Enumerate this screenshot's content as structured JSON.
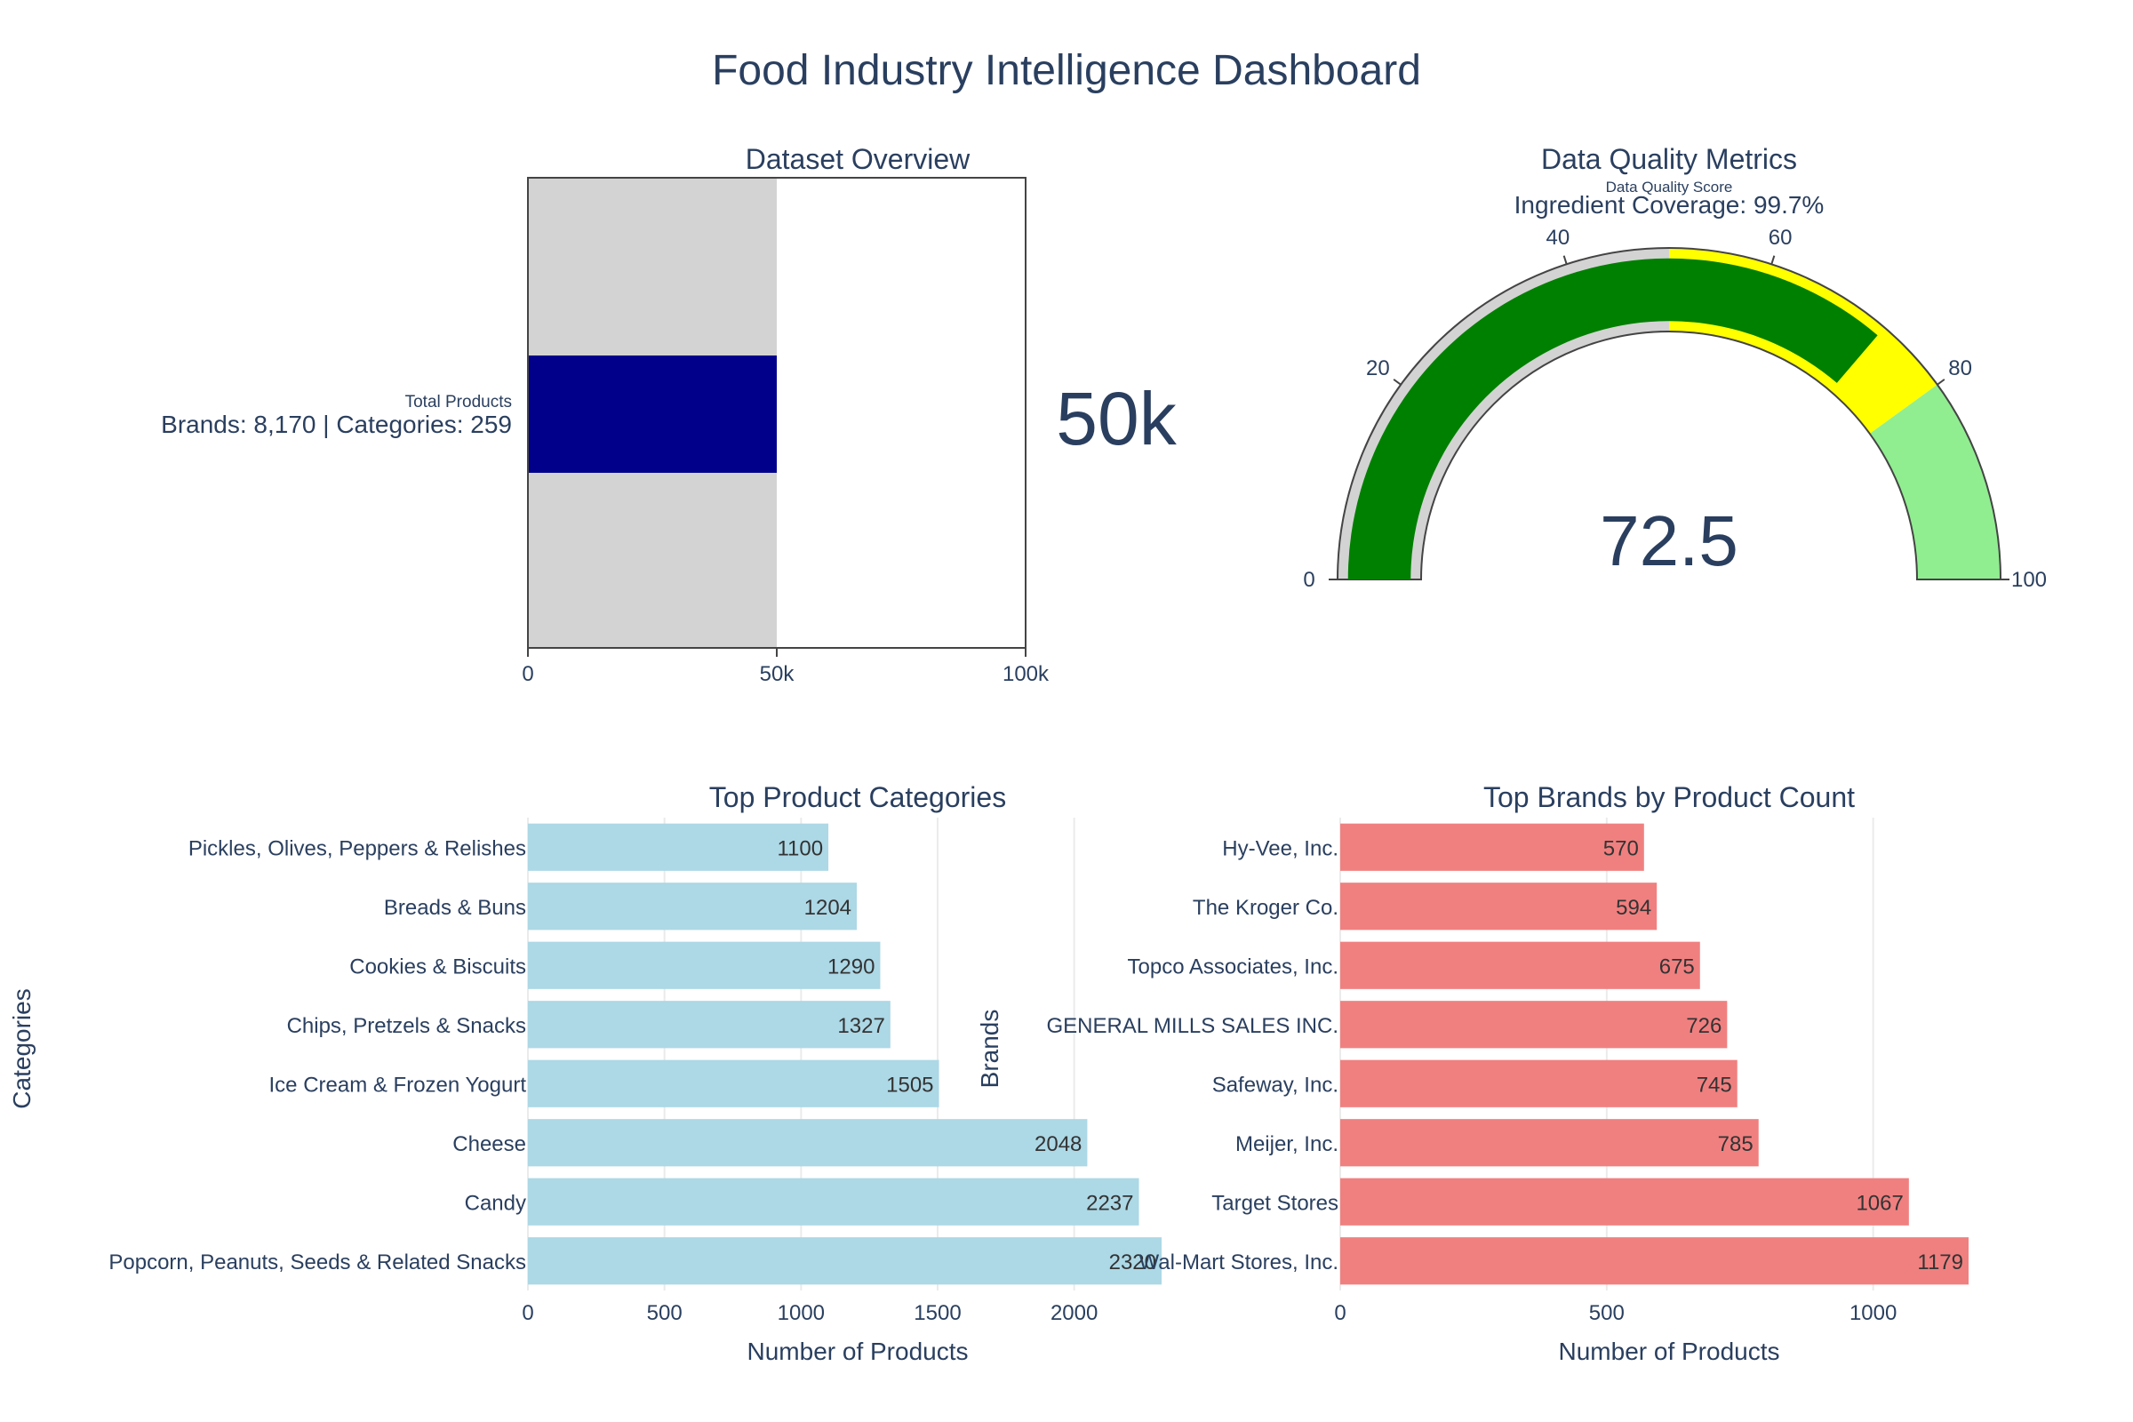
{
  "dashboard_title": "Food Industry Intelligence Dashboard",
  "colors": {
    "text": "#2a3f5f",
    "bullet_bar": "#00008b",
    "bullet_range": "#d3d3d3",
    "gauge_bar": "#008000",
    "gauge_step_low": "#d3d3d3",
    "gauge_step_mid": "#ffff00",
    "gauge_step_high": "#90ee90",
    "categories_bar": "#add8e6",
    "brands_bar": "#f08080",
    "grid": "#ebebeb"
  },
  "chart_data": [
    {
      "type": "bullet",
      "panel_title": "Dataset Overview",
      "label": "Total Products",
      "sublabel": "Brands: 8,170 | Categories: 259",
      "value": 50000,
      "value_text": "50k",
      "range": [
        0,
        100000
      ],
      "step_range": [
        0,
        50000
      ],
      "ticks": [
        0,
        50000,
        100000
      ],
      "tick_labels": [
        "0",
        "50k",
        "100k"
      ]
    },
    {
      "type": "gauge",
      "panel_title": "Data Quality Metrics",
      "label": "Data Quality Score",
      "sublabel": "Ingredient Coverage: 99.7%",
      "value": 72.5,
      "value_text": "72.5",
      "range": [
        0,
        100
      ],
      "steps": [
        [
          0,
          50
        ],
        [
          50,
          80
        ],
        [
          80,
          100
        ]
      ],
      "ticks": [
        0,
        20,
        40,
        60,
        80,
        100
      ]
    },
    {
      "type": "bar",
      "orientation": "horizontal",
      "title": "Top Product Categories",
      "xlabel": "Number of Products",
      "ylabel": "Categories",
      "categories": [
        "Popcorn, Peanuts, Seeds & Related Snacks",
        "Candy",
        "Cheese",
        "Ice Cream & Frozen Yogurt",
        "Chips, Pretzels & Snacks",
        "Cookies & Biscuits",
        "Breads & Buns",
        "Pickles, Olives, Peppers & Relishes"
      ],
      "values": [
        2320,
        2237,
        2048,
        1505,
        1327,
        1290,
        1204,
        1100
      ],
      "xlim": [
        0,
        2320
      ],
      "xticks": [
        0,
        500,
        1000,
        1500,
        2000
      ]
    },
    {
      "type": "bar",
      "orientation": "horizontal",
      "title": "Top Brands by Product Count",
      "xlabel": "Number of Products",
      "ylabel": "Brands",
      "categories": [
        "Wal-Mart Stores, Inc.",
        "Target Stores",
        "Meijer, Inc.",
        "Safeway, Inc.",
        "GENERAL MILLS SALES INC.",
        "Topco Associates, Inc.",
        "The Kroger Co.",
        "Hy-Vee, Inc."
      ],
      "values": [
        1179,
        1067,
        785,
        745,
        726,
        675,
        594,
        570
      ],
      "xlim": [
        0,
        1179
      ],
      "xticks": [
        0,
        500,
        1000
      ]
    }
  ]
}
